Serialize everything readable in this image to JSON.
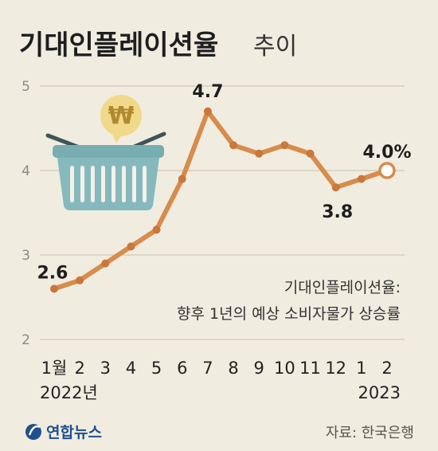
{
  "title": "기대인플레이션율",
  "subtitle": "추이",
  "chart_data": {
    "type": "line",
    "x": [
      "2022-01",
      "2022-02",
      "2022-03",
      "2022-04",
      "2022-05",
      "2022-06",
      "2022-07",
      "2022-08",
      "2022-09",
      "2022-10",
      "2022-11",
      "2022-12",
      "2023-01",
      "2023-02"
    ],
    "categories": [
      "1월",
      "2",
      "3",
      "4",
      "5",
      "6",
      "7",
      "8",
      "9",
      "10",
      "11",
      "12",
      "1",
      "2"
    ],
    "values": [
      2.6,
      2.7,
      2.9,
      3.1,
      3.3,
      3.9,
      4.7,
      4.3,
      4.2,
      4.3,
      4.2,
      3.8,
      3.9,
      4.0
    ],
    "ylim": [
      2,
      5
    ],
    "yticks": [
      "2",
      "3",
      "4",
      "5"
    ],
    "grid": true,
    "year_labels": [
      "2022년",
      "2023"
    ],
    "data_labels": [
      {
        "index": 0,
        "text": "2.6"
      },
      {
        "index": 6,
        "text": "4.7"
      },
      {
        "index": 11,
        "text": "3.8"
      },
      {
        "index": 13,
        "text": "4.0%"
      }
    ],
    "annotation": [
      "기대인플레이션율:",
      "향후 1년의 예상 소비자물가 상승률"
    ],
    "line_color": "#d78c4c"
  },
  "source": "자료: 한국은행",
  "logo": {
    "text": "연합뉴스",
    "icon": "yonhap-logo-icon",
    "color": "#1f4f8e"
  },
  "illustration": {
    "icon": "shopping-basket-with-won-coin-icon",
    "basket_color": "#86b9bd",
    "coin_color": "#f1d98a"
  }
}
